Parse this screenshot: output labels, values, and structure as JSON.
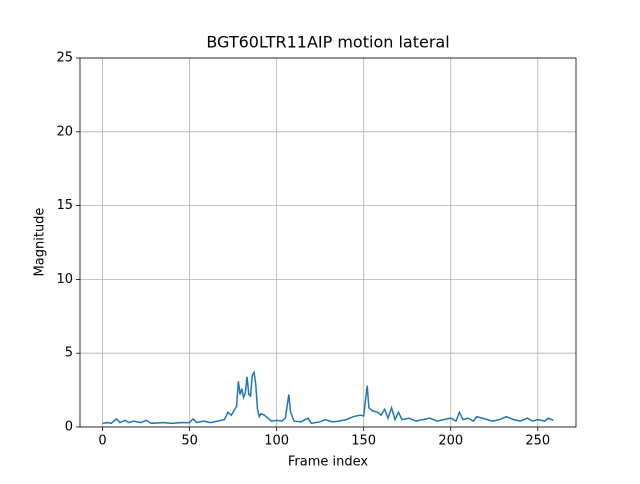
{
  "chart_data": {
    "type": "line",
    "title": "BGT60LTR11AIP motion lateral",
    "x_label": "Frame index",
    "y_label": "Magnitude",
    "x": [
      0,
      3,
      5,
      8,
      10,
      13,
      15,
      18,
      22,
      25,
      28,
      35,
      40,
      45,
      50,
      52,
      54,
      58,
      62,
      66,
      70,
      72,
      74,
      76,
      77,
      78,
      79,
      80,
      81,
      82,
      83,
      84,
      85,
      86,
      87,
      88,
      89,
      90,
      91,
      93,
      95,
      97,
      100,
      103,
      105,
      107,
      108,
      110,
      114,
      118,
      120,
      125,
      128,
      132,
      136,
      140,
      144,
      148,
      150,
      152,
      153,
      155,
      158,
      160,
      162,
      164,
      166,
      168,
      170,
      172,
      176,
      180,
      184,
      188,
      192,
      196,
      200,
      203,
      205,
      207,
      210,
      213,
      215,
      218,
      221,
      224,
      228,
      232,
      236,
      240,
      244,
      247,
      250,
      254,
      256,
      259
    ],
    "series": [
      {
        "color": "#1f77b4",
        "values": [
          0.25,
          0.3,
          0.25,
          0.55,
          0.3,
          0.45,
          0.3,
          0.4,
          0.3,
          0.45,
          0.25,
          0.3,
          0.25,
          0.3,
          0.3,
          0.55,
          0.3,
          0.4,
          0.3,
          0.4,
          0.5,
          1.0,
          0.8,
          1.2,
          1.4,
          3.1,
          2.2,
          2.6,
          2.0,
          2.3,
          3.4,
          2.2,
          2.1,
          3.5,
          3.7,
          2.9,
          1.2,
          0.7,
          0.9,
          0.8,
          0.6,
          0.4,
          0.45,
          0.4,
          0.6,
          2.2,
          1.0,
          0.4,
          0.35,
          0.6,
          0.25,
          0.35,
          0.5,
          0.35,
          0.4,
          0.5,
          0.7,
          0.8,
          0.75,
          2.8,
          1.3,
          1.1,
          1.0,
          0.8,
          1.2,
          0.6,
          1.3,
          0.5,
          1.0,
          0.5,
          0.6,
          0.4,
          0.5,
          0.6,
          0.4,
          0.5,
          0.6,
          0.4,
          1.0,
          0.5,
          0.6,
          0.4,
          0.7,
          0.6,
          0.5,
          0.4,
          0.5,
          0.7,
          0.5,
          0.4,
          0.6,
          0.4,
          0.5,
          0.4,
          0.6,
          0.45
        ]
      }
    ],
    "xlim": [
      -12.95,
      271.95
    ],
    "xticks": [
      0,
      50,
      100,
      150,
      200,
      250
    ],
    "ylim": [
      0,
      25
    ],
    "yticks": [
      0,
      5,
      10,
      15,
      20,
      25
    ],
    "grid": true
  }
}
